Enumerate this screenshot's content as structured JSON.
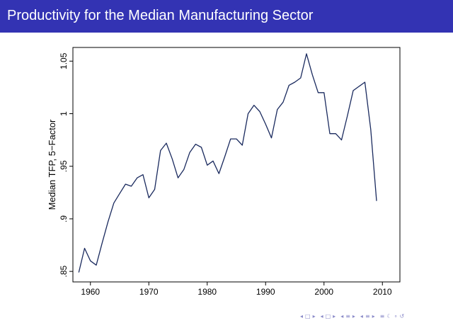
{
  "slide": {
    "title": "Productivity for the Median Manufacturing Sector"
  },
  "chart_data": {
    "type": "line",
    "title": "",
    "xlabel": "",
    "ylabel": "Median TFP, 5−Factor",
    "xlim": [
      1957,
      2013
    ],
    "ylim": [
      0.84,
      1.063
    ],
    "xticks": [
      1960,
      1970,
      1980,
      1990,
      2000,
      2010
    ],
    "xtick_labels": [
      "1960",
      "1970",
      "1980",
      "1990",
      "2000",
      "2010"
    ],
    "yticks": [
      0.85,
      0.9,
      0.95,
      1.0,
      1.05
    ],
    "ytick_labels": [
      ".85",
      ".9",
      ".95",
      "1",
      "1.05"
    ],
    "grid": false,
    "series": [
      {
        "name": "Median TFP, 5-Factor",
        "color": "#1a2a5e",
        "x": [
          1958,
          1959,
          1960,
          1961,
          1962,
          1963,
          1964,
          1965,
          1966,
          1967,
          1968,
          1969,
          1970,
          1971,
          1972,
          1973,
          1974,
          1975,
          1976,
          1977,
          1978,
          1979,
          1980,
          1981,
          1982,
          1983,
          1984,
          1985,
          1986,
          1987,
          1988,
          1989,
          1990,
          1991,
          1992,
          1993,
          1994,
          1995,
          1996,
          1997,
          1998,
          1999,
          2000,
          2001,
          2002,
          2003,
          2004,
          2005,
          2006,
          2007,
          2008,
          2009
        ],
        "y": [
          0.849,
          0.872,
          0.86,
          0.856,
          0.877,
          0.897,
          0.915,
          0.924,
          0.933,
          0.931,
          0.939,
          0.942,
          0.92,
          0.928,
          0.965,
          0.972,
          0.957,
          0.939,
          0.947,
          0.963,
          0.971,
          0.968,
          0.951,
          0.955,
          0.943,
          0.959,
          0.976,
          0.976,
          0.97,
          1.0,
          1.008,
          1.002,
          0.99,
          0.977,
          1.004,
          1.011,
          1.027,
          1.03,
          1.034,
          1.057,
          1.037,
          1.02,
          1.02,
          0.981,
          0.981,
          0.975,
          0.998,
          1.022,
          1.026,
          1.03,
          0.985,
          0.917
        ]
      }
    ]
  },
  "nav": {
    "symbols": [
      "◂",
      "□",
      "▸",
      "◂",
      "□",
      "▸",
      "◂",
      "≡",
      "▸",
      "◂",
      "≡",
      "▸",
      "≡",
      "☾",
      "∘",
      "↺"
    ]
  }
}
